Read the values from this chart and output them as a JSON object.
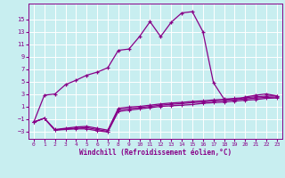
{
  "xlabel": "Windchill (Refroidissement éolien,°C)",
  "bg_color": "#c8eef0",
  "grid_color": "#b0dde0",
  "line_color": "#880088",
  "x_ticks": [
    0,
    1,
    2,
    3,
    4,
    5,
    6,
    7,
    8,
    9,
    10,
    11,
    12,
    13,
    14,
    15,
    16,
    17,
    18,
    19,
    20,
    21,
    22,
    23
  ],
  "y_ticks": [
    -3,
    -1,
    1,
    3,
    5,
    7,
    9,
    11,
    13,
    15
  ],
  "ylim": [
    -4.2,
    17.5
  ],
  "xlim": [
    -0.5,
    23.5
  ],
  "line1_x": [
    0,
    1,
    2,
    3,
    4,
    5,
    6,
    7,
    8,
    9,
    10,
    11,
    12,
    13,
    14,
    15,
    16,
    17,
    18,
    19,
    20,
    21,
    22,
    23
  ],
  "line1_y": [
    -1.5,
    2.8,
    3.0,
    4.5,
    5.2,
    6.0,
    6.5,
    7.2,
    10.0,
    10.2,
    12.2,
    14.6,
    12.2,
    14.5,
    16.0,
    16.2,
    13.0,
    4.8,
    2.2,
    2.0,
    2.5,
    2.8,
    3.0,
    2.7
  ],
  "line2_x": [
    0,
    1,
    2,
    3,
    4,
    5,
    6,
    7,
    8,
    9,
    10,
    11,
    12,
    13,
    14,
    15,
    16,
    17,
    18,
    19,
    20,
    21,
    22,
    23
  ],
  "line2_y": [
    -1.5,
    -0.9,
    -2.8,
    -2.7,
    -2.6,
    -2.6,
    -2.9,
    -3.1,
    0.2,
    0.4,
    0.6,
    0.8,
    1.0,
    1.1,
    1.2,
    1.3,
    1.5,
    1.6,
    1.7,
    1.85,
    2.0,
    2.1,
    2.3,
    2.35
  ],
  "line3_x": [
    0,
    1,
    2,
    3,
    4,
    5,
    6,
    7,
    8,
    9,
    10,
    11,
    12,
    13,
    14,
    15,
    16,
    17,
    18,
    19,
    20,
    21,
    22,
    23
  ],
  "line3_y": [
    -1.5,
    -0.9,
    -2.8,
    -2.6,
    -2.5,
    -2.4,
    -2.7,
    -3.0,
    0.45,
    0.65,
    0.8,
    1.0,
    1.2,
    1.35,
    1.45,
    1.6,
    1.7,
    1.85,
    1.95,
    2.1,
    2.2,
    2.35,
    2.45,
    2.5
  ],
  "line4_x": [
    0,
    1,
    2,
    3,
    4,
    5,
    6,
    7,
    8,
    9,
    10,
    11,
    12,
    13,
    14,
    15,
    16,
    17,
    18,
    19,
    20,
    21,
    22,
    23
  ],
  "line4_y": [
    -1.5,
    -0.9,
    -2.7,
    -2.5,
    -2.3,
    -2.2,
    -2.5,
    -2.8,
    0.7,
    0.9,
    1.0,
    1.2,
    1.4,
    1.55,
    1.65,
    1.8,
    1.9,
    2.05,
    2.15,
    2.3,
    2.4,
    2.55,
    2.65,
    2.7
  ]
}
